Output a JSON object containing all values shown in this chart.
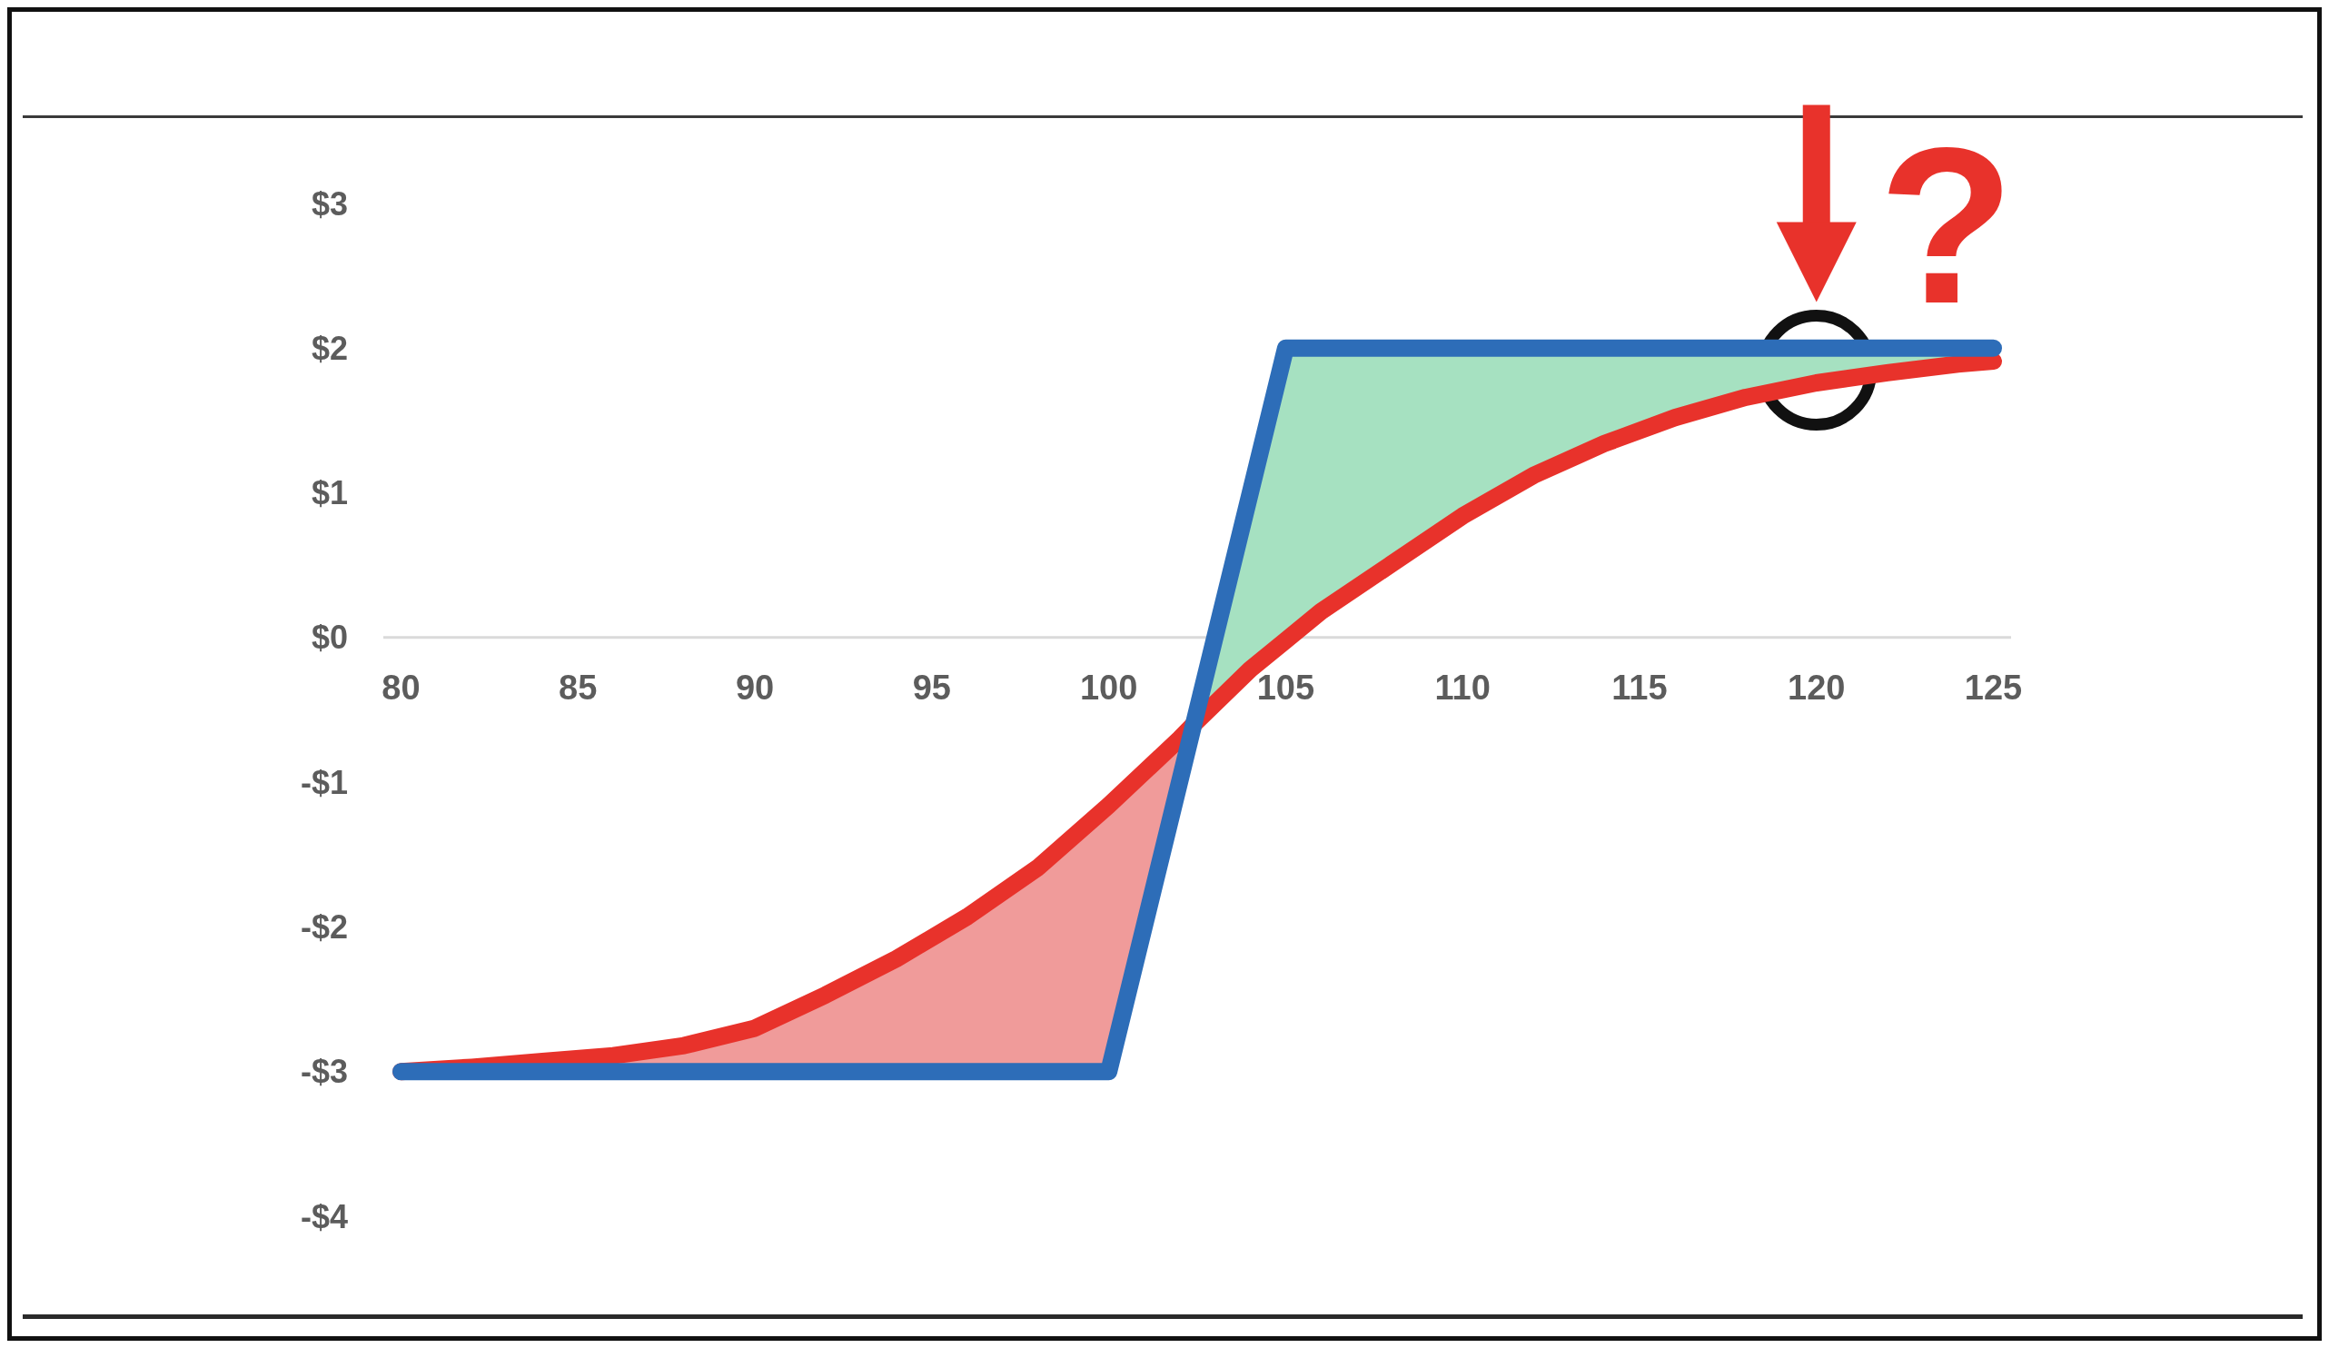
{
  "chart_data": {
    "type": "line",
    "xlim": [
      79.5,
      125.5
    ],
    "xticks": [
      80,
      85,
      90,
      95,
      100,
      105,
      110,
      115,
      120,
      125
    ],
    "ylim": [
      -4,
      3
    ],
    "yticks": [
      {
        "value": -4,
        "label": "-$4"
      },
      {
        "value": -3,
        "label": "-$3"
      },
      {
        "value": -2,
        "label": "-$2"
      },
      {
        "value": -1,
        "label": "-$1"
      },
      {
        "value": 0,
        "label": "$0"
      },
      {
        "value": 1,
        "label": "$1"
      },
      {
        "value": 2,
        "label": "$2"
      },
      {
        "value": 3,
        "label": "$3"
      }
    ],
    "grid": false,
    "marker": "none",
    "line_style": "solid",
    "series": [
      {
        "color": "#e8322b",
        "x": [
          80,
          82,
          84,
          86,
          88,
          90,
          92,
          94,
          96,
          98,
          100,
          102,
          102.4,
          104,
          105,
          106,
          108,
          110,
          112,
          114,
          116,
          118,
          120,
          122,
          124,
          125
        ],
        "values": [
          -3,
          -2.97,
          -2.93,
          -2.89,
          -2.82,
          -2.7,
          -2.47,
          -2.22,
          -1.93,
          -1.59,
          -1.16,
          -0.7,
          -0.6,
          -0.22,
          -0.02,
          0.18,
          0.51,
          0.84,
          1.12,
          1.34,
          1.52,
          1.66,
          1.76,
          1.83,
          1.89,
          1.91
        ],
        "lower": [
          -3,
          -3,
          -3,
          -3,
          -3,
          -3,
          -3,
          -3,
          -3,
          -3,
          -3,
          -1,
          -0.6,
          -0.22,
          -0.02,
          0.18,
          0.51,
          0.84,
          1.12,
          1.34,
          1.52,
          1.66,
          1.76,
          1.83,
          1.89,
          1.91
        ],
        "upper": [
          -3,
          -2.97,
          -2.93,
          -2.89,
          -2.82,
          -2.7,
          -2.47,
          -2.22,
          -1.93,
          -1.59,
          -1.16,
          -0.7,
          -0.6,
          1,
          2,
          2,
          2,
          2,
          2,
          2,
          2,
          2,
          2,
          2,
          2,
          2
        ]
      },
      {
        "color": "#2d6db8",
        "x": [
          80,
          100,
          105,
          125
        ],
        "values": [
          -3,
          -3,
          2,
          2
        ]
      }
    ],
    "annotations": [
      {
        "text": "?",
        "x": 120,
        "y": 1.76
      }
    ]
  }
}
